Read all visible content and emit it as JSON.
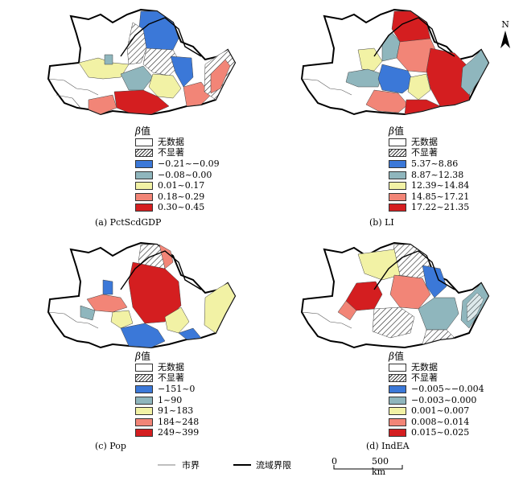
{
  "legend_common": {
    "beta": "β",
    "zh": "值",
    "no_data": "无数据",
    "not_significant": "不显著"
  },
  "colors": [
    "#3b78d8",
    "#8fb6bd",
    "#f2f2a5",
    "#f28577",
    "#d41e20"
  ],
  "panels": [
    {
      "id": "a",
      "caption": "(a) PctScdGDP",
      "classes": [
        "−0.21~−0.09",
        "−0.08~0.00",
        "0.01~0.17",
        "0.18~0.29",
        "0.30~0.45"
      ]
    },
    {
      "id": "b",
      "caption": "(b) LI",
      "classes": [
        "5.37~8.86",
        "8.87~12.38",
        "12.39~14.84",
        "14.85~17.21",
        "17.22~21.35"
      ]
    },
    {
      "id": "c",
      "caption": "(c) Pop",
      "classes": [
        "−151~0",
        "1~90",
        "91~183",
        "184~248",
        "249~399"
      ]
    },
    {
      "id": "d",
      "caption": "(d) IndEA",
      "classes": [
        "−0.005~−0.004",
        "−0.003~0.000",
        "0.001~0.007",
        "0.008~0.014",
        "0.015~0.025"
      ]
    }
  ],
  "bottom_legend": {
    "city_boundary": "市界",
    "basin_boundary": "流域界限",
    "scale_zero": "0",
    "scale_max": "500 km"
  },
  "north_label": "N"
}
